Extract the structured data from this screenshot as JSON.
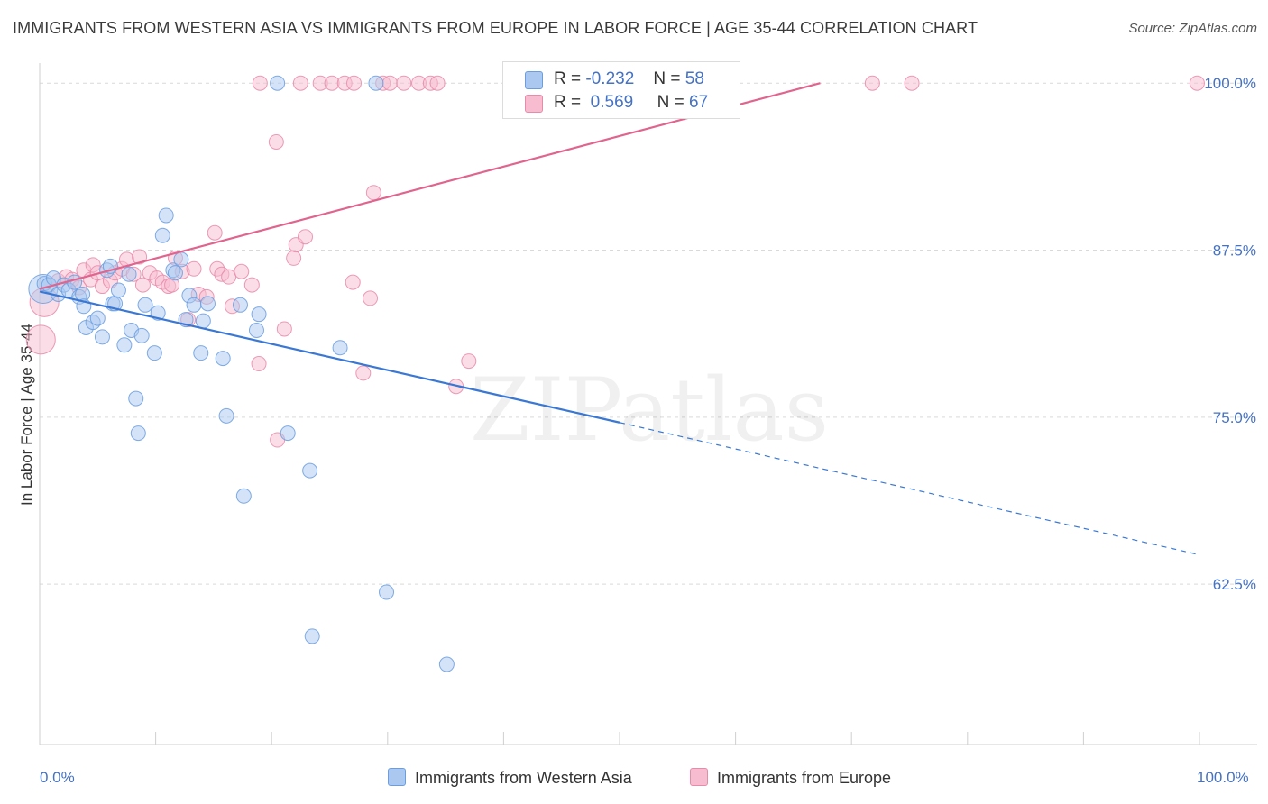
{
  "title": "IMMIGRANTS FROM WESTERN ASIA VS IMMIGRANTS FROM EUROPE IN LABOR FORCE | AGE 35-44 CORRELATION CHART",
  "source": "Source: ZipAtlas.com",
  "watermark": "ZIPatlas",
  "colors": {
    "blue_fill": "#aac8f0",
    "blue_stroke": "#6a9ee0",
    "blue_line": "#3a78d4",
    "pink_fill": "#f7bcd0",
    "pink_stroke": "#e88aa8",
    "pink_line": "#e0648e",
    "tick_label": "#4472c4"
  },
  "legend_stats": [
    {
      "r_label": "R =",
      "r_value": "-0.232",
      "n_label": "N =",
      "n_value": "58",
      "color": "#aac8f0"
    },
    {
      "r_label": "R =",
      "r_value": "0.569",
      "n_label": "N =",
      "n_value": "67",
      "color": "#f7bcd0"
    }
  ],
  "chart_data": {
    "type": "scatter",
    "title": "IMMIGRANTS FROM WESTERN ASIA VS IMMIGRANTS FROM EUROPE IN LABOR FORCE | AGE 35-44 CORRELATION CHART",
    "xlabel": "",
    "ylabel": "In Labor Force | Age 35-44",
    "xlim": [
      0,
      100
    ],
    "ylim": [
      50.5,
      101.5
    ],
    "x_tick_labels": [
      "0.0%",
      "100.0%"
    ],
    "y_ticks": [
      62.5,
      75.0,
      87.5,
      100.0
    ],
    "y_tick_labels": [
      "62.5%",
      "75.0%",
      "87.5%",
      "100.0%"
    ],
    "grid": true,
    "legend_position": "bottom",
    "series": [
      {
        "name": "Immigrants from Western Asia",
        "color": "#aac8f0",
        "trend": {
          "x0": 0,
          "y0": 84.4,
          "x1": 50,
          "y1": 74.6,
          "dash_to_x": 100,
          "dash_to_y": 64.7
        },
        "points": [
          [
            0.3,
            84.6,
            16
          ],
          [
            0.4,
            85.0,
            8
          ],
          [
            0.8,
            84.9,
            8
          ],
          [
            1.2,
            85.4,
            8
          ],
          [
            1.6,
            84.2,
            8
          ],
          [
            2.1,
            84.9,
            8
          ],
          [
            2.5,
            84.5,
            8
          ],
          [
            3.0,
            85.1,
            8
          ],
          [
            3.4,
            84.0,
            8
          ],
          [
            3.7,
            84.2,
            8
          ],
          [
            3.8,
            83.3,
            8
          ],
          [
            4.0,
            81.7,
            8
          ],
          [
            4.6,
            82.1,
            8
          ],
          [
            5.0,
            82.4,
            8
          ],
          [
            5.4,
            81.0,
            8
          ],
          [
            5.8,
            86.0,
            8
          ],
          [
            6.1,
            86.3,
            8
          ],
          [
            6.3,
            83.5,
            8
          ],
          [
            6.5,
            83.5,
            8
          ],
          [
            6.8,
            84.5,
            8
          ],
          [
            7.3,
            80.4,
            8
          ],
          [
            7.7,
            85.7,
            8
          ],
          [
            7.9,
            81.5,
            8
          ],
          [
            8.3,
            76.4,
            8
          ],
          [
            8.5,
            73.8,
            8
          ],
          [
            8.8,
            81.1,
            8
          ],
          [
            9.1,
            83.4,
            8
          ],
          [
            9.9,
            79.8,
            8
          ],
          [
            10.2,
            82.8,
            8
          ],
          [
            10.6,
            88.6,
            8
          ],
          [
            10.9,
            90.1,
            8
          ],
          [
            11.5,
            86.0,
            8
          ],
          [
            11.7,
            85.8,
            8
          ],
          [
            12.2,
            86.8,
            8
          ],
          [
            12.6,
            82.3,
            8
          ],
          [
            12.9,
            84.1,
            8
          ],
          [
            13.3,
            83.4,
            8
          ],
          [
            13.9,
            79.8,
            8
          ],
          [
            14.1,
            82.2,
            8
          ],
          [
            14.5,
            83.5,
            8
          ],
          [
            15.8,
            79.4,
            8
          ],
          [
            16.1,
            75.1,
            8
          ],
          [
            17.3,
            83.4,
            8
          ],
          [
            17.6,
            69.1,
            8
          ],
          [
            18.7,
            81.5,
            8
          ],
          [
            18.9,
            82.7,
            8
          ],
          [
            20.5,
            100.0,
            8
          ],
          [
            21.4,
            73.8,
            8
          ],
          [
            23.3,
            71.0,
            8
          ],
          [
            23.5,
            58.6,
            8
          ],
          [
            25.9,
            80.2,
            8
          ],
          [
            29.0,
            100.0,
            8
          ],
          [
            29.9,
            61.9,
            8
          ],
          [
            35.1,
            56.5,
            8
          ]
        ]
      },
      {
        "name": "Immigrants from Europe",
        "color": "#f7bcd0",
        "trend": {
          "x0": 0,
          "y0": 84.6,
          "x1": 67.3,
          "y1": 100.0
        },
        "points": [
          [
            0.1,
            80.8,
            16
          ],
          [
            0.4,
            83.6,
            16
          ],
          [
            1.6,
            85.2,
            8
          ],
          [
            2.3,
            85.5,
            8
          ],
          [
            2.8,
            85.3,
            8
          ],
          [
            3.4,
            84.7,
            8
          ],
          [
            3.8,
            86.0,
            8
          ],
          [
            4.4,
            85.3,
            8
          ],
          [
            4.6,
            86.4,
            8
          ],
          [
            5.0,
            85.8,
            8
          ],
          [
            5.4,
            84.8,
            8
          ],
          [
            6.1,
            85.2,
            8
          ],
          [
            6.5,
            85.8,
            8
          ],
          [
            7.1,
            86.1,
            8
          ],
          [
            7.5,
            86.8,
            8
          ],
          [
            8.1,
            85.7,
            8
          ],
          [
            8.6,
            87.0,
            8
          ],
          [
            8.9,
            84.9,
            8
          ],
          [
            9.5,
            85.8,
            8
          ],
          [
            10.1,
            85.4,
            8
          ],
          [
            10.6,
            85.1,
            8
          ],
          [
            11.1,
            84.8,
            8
          ],
          [
            11.4,
            84.9,
            8
          ],
          [
            11.7,
            86.9,
            8
          ],
          [
            12.3,
            85.9,
            8
          ],
          [
            12.8,
            82.3,
            8
          ],
          [
            13.3,
            86.1,
            8
          ],
          [
            13.7,
            84.2,
            8
          ],
          [
            14.4,
            84.0,
            8
          ],
          [
            15.1,
            88.8,
            8
          ],
          [
            15.3,
            86.1,
            8
          ],
          [
            15.7,
            85.7,
            8
          ],
          [
            16.3,
            85.5,
            8
          ],
          [
            16.6,
            83.3,
            8
          ],
          [
            17.4,
            85.9,
            8
          ],
          [
            18.3,
            84.9,
            8
          ],
          [
            18.9,
            79.0,
            8
          ],
          [
            19.0,
            100.0,
            8
          ],
          [
            20.4,
            95.6,
            8
          ],
          [
            20.5,
            73.3,
            8
          ],
          [
            21.1,
            81.6,
            8
          ],
          [
            21.9,
            86.9,
            8
          ],
          [
            22.1,
            87.9,
            8
          ],
          [
            22.9,
            88.5,
            8
          ],
          [
            22.5,
            100.0,
            8
          ],
          [
            24.2,
            100.0,
            8
          ],
          [
            25.2,
            100.0,
            8
          ],
          [
            26.3,
            100.0,
            8
          ],
          [
            27.1,
            100.0,
            8
          ],
          [
            27.0,
            85.1,
            8
          ],
          [
            27.9,
            78.3,
            8
          ],
          [
            28.5,
            83.9,
            8
          ],
          [
            28.8,
            91.8,
            8
          ],
          [
            29.6,
            100.0,
            8
          ],
          [
            30.2,
            100.0,
            8
          ],
          [
            31.4,
            100.0,
            8
          ],
          [
            32.7,
            100.0,
            8
          ],
          [
            33.7,
            100.0,
            8
          ],
          [
            34.3,
            100.0,
            8
          ],
          [
            35.9,
            77.3,
            8
          ],
          [
            37.0,
            79.2,
            8
          ],
          [
            41.9,
            100.0,
            8
          ],
          [
            47.3,
            100.0,
            8
          ],
          [
            71.8,
            100.0,
            8
          ],
          [
            75.2,
            100.0,
            8
          ],
          [
            99.8,
            100.0,
            8
          ]
        ]
      }
    ]
  }
}
